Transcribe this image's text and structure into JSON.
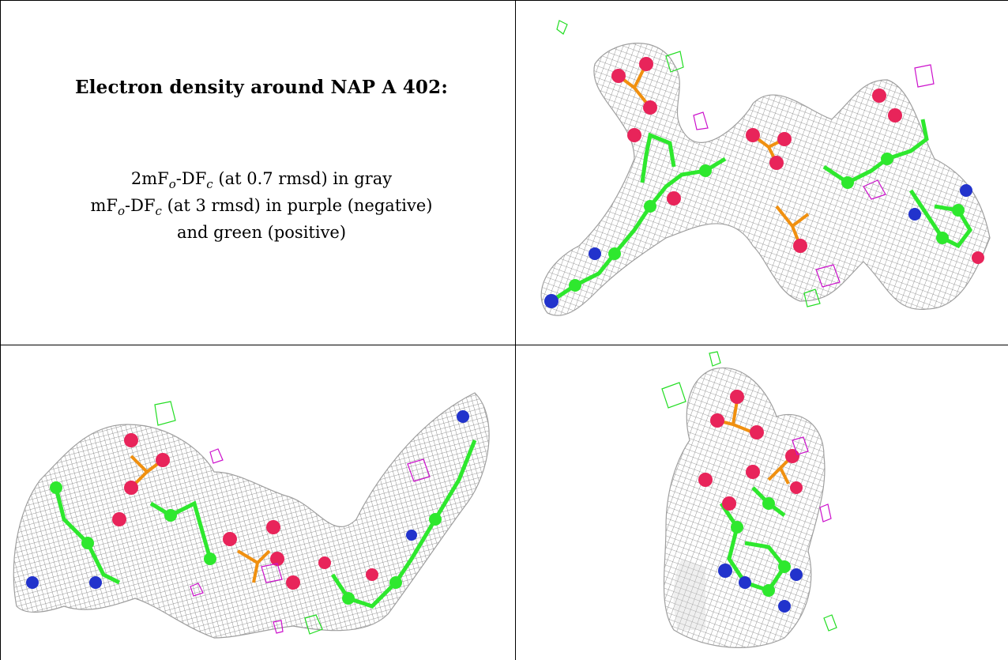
{
  "caption": {
    "title": "Electron density around NAP A 402:",
    "line1_prefix": "2mF",
    "line1_sub1": "o",
    "line1_mid": "-DF",
    "line1_sub2": "c",
    "line1_suffix": " (at 0.7 rmsd) in gray",
    "line2_prefix": "mF",
    "line2_sub1": "o",
    "line2_mid": "-DF",
    "line2_sub2": "c",
    "line2_suffix": " (at 3 rmsd) in purple (negative)",
    "line3": "and green (positive)"
  },
  "colors": {
    "density_gray": "#8a8a8a",
    "carbon_green": "#2ee82e",
    "oxygen_red": "#e8245a",
    "nitrogen_blue": "#2233cc",
    "phosphorus_orange": "#f09010",
    "negative_purple": "#cc11cc",
    "positive_green": "#22dd22"
  },
  "panels": [
    {
      "id": "view-1",
      "content": "electron-density-render"
    },
    {
      "id": "view-2",
      "content": "electron-density-render"
    },
    {
      "id": "view-3",
      "content": "electron-density-render"
    }
  ]
}
